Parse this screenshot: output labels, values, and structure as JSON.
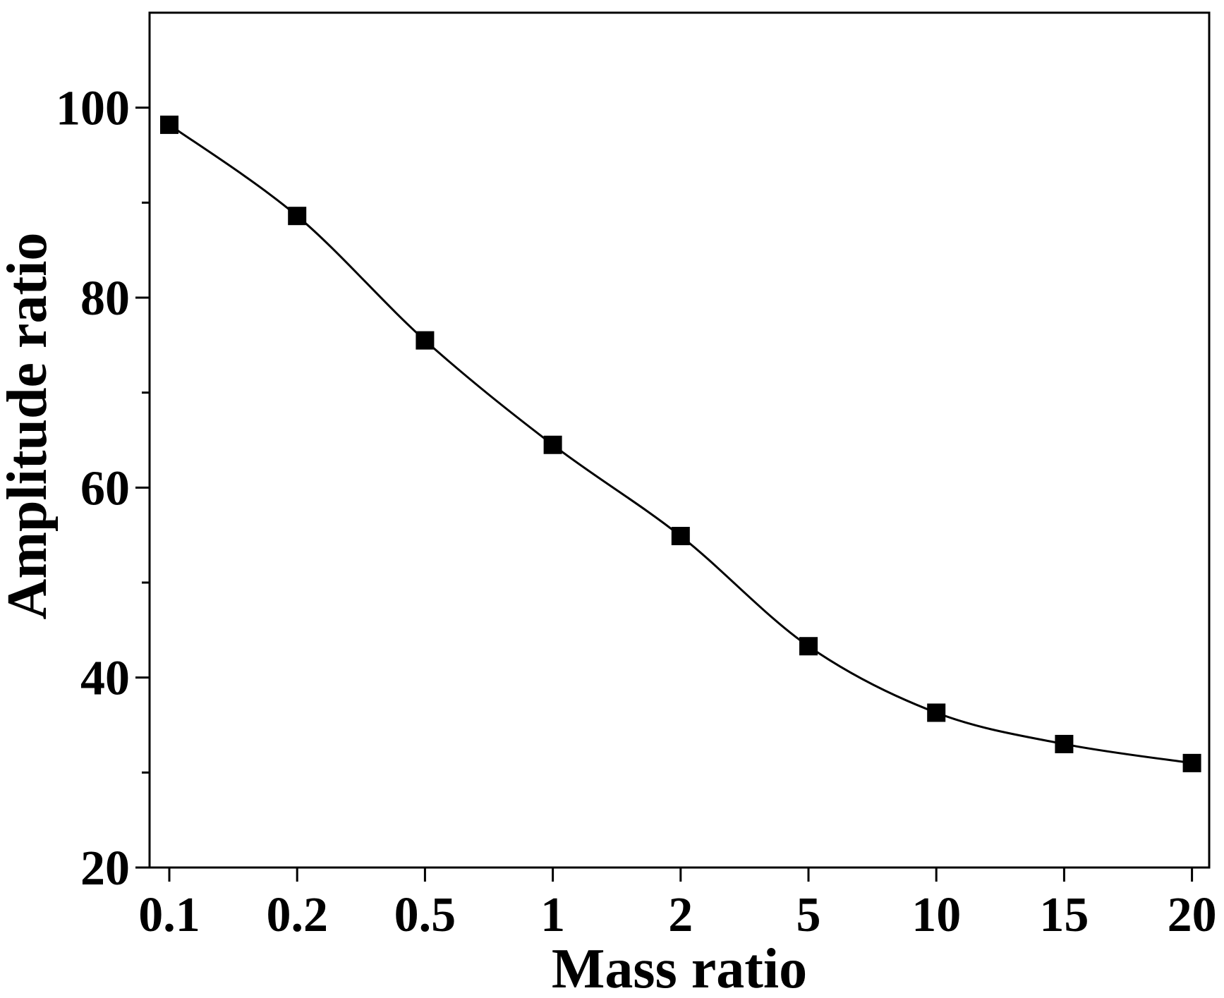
{
  "chart_data": {
    "type": "line",
    "title": "",
    "xlabel": "Mass ratio",
    "ylabel": "Amplitude ratio",
    "x_scale": "categorical",
    "categories": [
      "0.1",
      "0.2",
      "0.5",
      "1",
      "2",
      "5",
      "10",
      "15",
      "20"
    ],
    "series": [
      {
        "name": "Amplitude ratio",
        "marker": "square",
        "values": [
          98.2,
          88.6,
          75.5,
          64.5,
          54.9,
          43.3,
          36.3,
          33.0,
          31.0
        ]
      }
    ],
    "ylim": [
      20,
      110
    ],
    "y_major_ticks": [
      20,
      40,
      60,
      80,
      100
    ],
    "y_minor_ticks": [
      30,
      50,
      70,
      90
    ],
    "grid": false,
    "legend": "none",
    "colors": {
      "line": "#000000",
      "marker": "#000000",
      "axis": "#000000",
      "background": "#ffffff"
    }
  }
}
